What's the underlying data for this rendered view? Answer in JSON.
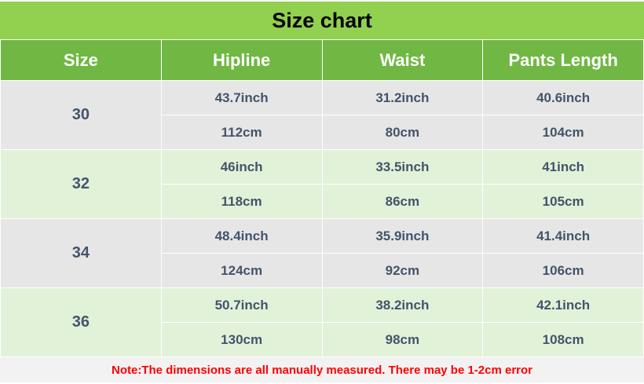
{
  "title": "Size chart",
  "headers": [
    "Size",
    "Hipline",
    "Waist",
    "Pants Length"
  ],
  "rows": [
    {
      "size": "30",
      "inch": [
        "43.7inch",
        "31.2inch",
        "40.6inch"
      ],
      "cm": [
        "112cm",
        "80cm",
        "104cm"
      ]
    },
    {
      "size": "32",
      "inch": [
        "46inch",
        "33.5inch",
        "41inch"
      ],
      "cm": [
        "118cm",
        "86cm",
        "105cm"
      ]
    },
    {
      "size": "34",
      "inch": [
        "48.4inch",
        "35.9inch",
        "41.4inch"
      ],
      "cm": [
        "124cm",
        "92cm",
        "106cm"
      ]
    },
    {
      "size": "36",
      "inch": [
        "50.7inch",
        "38.2inch",
        "42.1inch"
      ],
      "cm": [
        "130cm",
        "98cm",
        "108cm"
      ]
    }
  ],
  "note": "Note:The dimensions are all manually measured. There may be 1-2cm error",
  "colors": {
    "title_bg": "#92d050",
    "header_bg": "#70b843",
    "row_gray": "#e6e6e6",
    "row_green": "#e2f2d9",
    "text": "#44546a",
    "note": "#ff0000"
  }
}
